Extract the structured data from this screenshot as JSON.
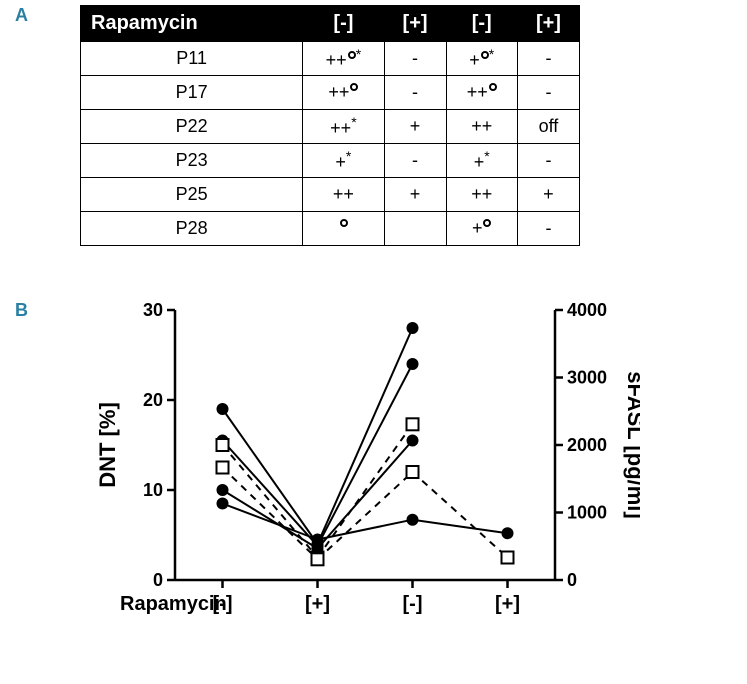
{
  "labels": {
    "panelA": "A",
    "panelB": "B"
  },
  "table": {
    "header": [
      "Rapamycin",
      "[-]",
      "[+]",
      "[-]",
      "[+]"
    ],
    "rows": [
      {
        "id": "P11",
        "cells": [
          {
            "text": "++",
            "circle": true,
            "star": true
          },
          {
            "text": "-"
          },
          {
            "text": "+",
            "circle": true,
            "star": true
          },
          {
            "text": "-"
          }
        ]
      },
      {
        "id": "P17",
        "cells": [
          {
            "text": "++",
            "circle": true
          },
          {
            "text": "-"
          },
          {
            "text": "++",
            "circle": true
          },
          {
            "text": "-"
          }
        ]
      },
      {
        "id": "P22",
        "cells": [
          {
            "text": "++",
            "star": true
          },
          {
            "text": "+"
          },
          {
            "text": "++"
          },
          {
            "text": "off"
          }
        ]
      },
      {
        "id": "P23",
        "cells": [
          {
            "text": "+",
            "star": true
          },
          {
            "text": "-"
          },
          {
            "text": "+",
            "star": true
          },
          {
            "text": "-"
          }
        ]
      },
      {
        "id": "P25",
        "cells": [
          {
            "text": "++"
          },
          {
            "text": "+"
          },
          {
            "text": "++"
          },
          {
            "text": "+"
          }
        ]
      },
      {
        "id": "P28",
        "cells": [
          {
            "text": "",
            "circle": true
          },
          {
            "text": ""
          },
          {
            "text": "+",
            "circle": true
          },
          {
            "text": "-"
          }
        ]
      }
    ]
  },
  "chart": {
    "type": "line",
    "categories": [
      "[-]",
      "[+]",
      "[-]",
      "[+]"
    ],
    "x_label": "Rapamycin",
    "y_left_label": "DNT [%]",
    "y_right_label": "sFASL [pg/ml]",
    "y_left": {
      "min": 0,
      "max": 30,
      "ticks": [
        0,
        10,
        20,
        30
      ]
    },
    "y_right": {
      "min": 0,
      "max": 4000,
      "ticks": [
        0,
        1000,
        2000,
        3000,
        4000
      ]
    },
    "series": [
      {
        "marker": "circle-filled",
        "dash": false,
        "axis": "left",
        "values": [
          19,
          4,
          28,
          null
        ]
      },
      {
        "marker": "circle-filled",
        "dash": false,
        "axis": "left",
        "values": [
          15.5,
          3.8,
          24,
          null
        ]
      },
      {
        "marker": "circle-filled",
        "dash": false,
        "axis": "left",
        "values": [
          10,
          3.5,
          15.5,
          null
        ]
      },
      {
        "marker": "circle-filled",
        "dash": false,
        "axis": "left",
        "values": [
          8.5,
          4.5,
          6.7,
          5.2
        ]
      },
      {
        "marker": "square-open",
        "dash": true,
        "axis": "left",
        "values": [
          15,
          2.5,
          17.3,
          null
        ]
      },
      {
        "marker": "square-open",
        "dash": true,
        "axis": "left",
        "values": [
          12.5,
          2.3,
          12,
          2.5
        ]
      }
    ],
    "colors": {
      "axis": "#000000",
      "line": "#000000",
      "marker_fill": "#000000",
      "marker_open_fill": "#ffffff",
      "background": "#ffffff"
    },
    "tick_fontsize": 18,
    "label_fontsize": 22,
    "line_width": 2,
    "axis_width": 2.5,
    "marker_size": 6
  }
}
